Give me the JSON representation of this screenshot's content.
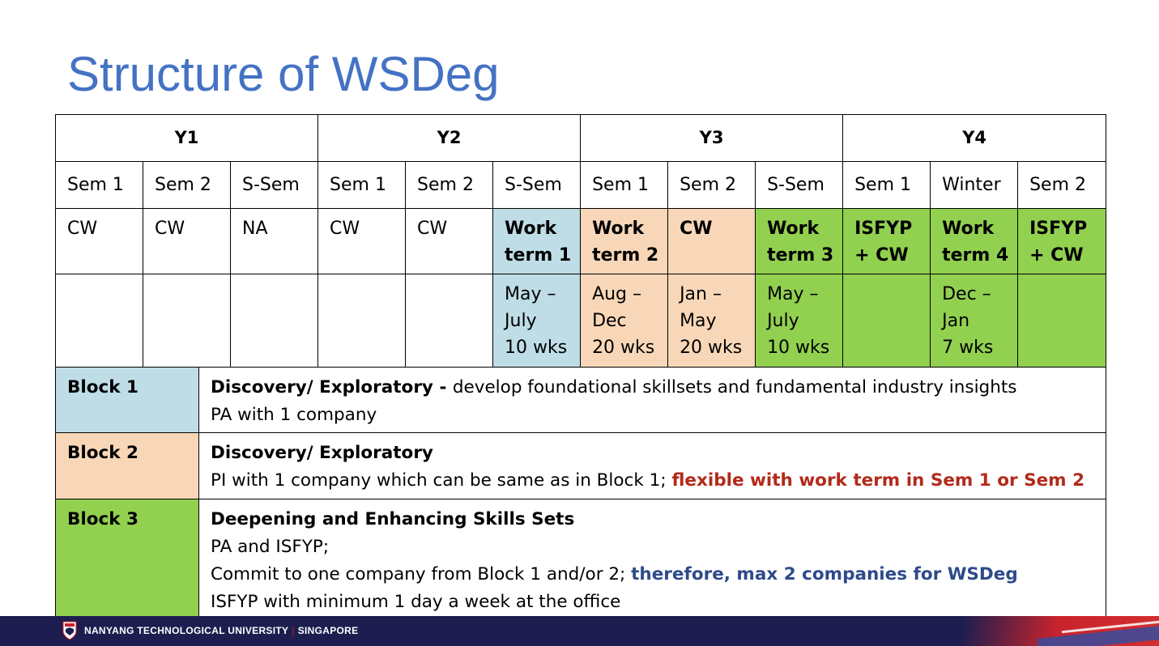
{
  "title": "Structure of WSDeg",
  "years": [
    "Y1",
    "Y2",
    "Y3",
    "Y4"
  ],
  "semesters": [
    "Sem 1",
    "Sem 2",
    "S-Sem",
    "Sem 1",
    "Sem 2",
    "S-Sem",
    "Sem 1",
    "Sem 2",
    "S-Sem",
    "Sem 1",
    "Winter",
    "Sem 2"
  ],
  "status": [
    {
      "lines": [
        "CW"
      ]
    },
    {
      "lines": [
        "CW"
      ]
    },
    {
      "lines": [
        "NA"
      ]
    },
    {
      "lines": [
        "CW"
      ]
    },
    {
      "lines": [
        "CW"
      ]
    },
    {
      "lines": [
        "Work",
        "term 1"
      ],
      "bold": true,
      "fill": "blue"
    },
    {
      "lines": [
        "Work",
        "term 2"
      ],
      "bold": true,
      "red": true,
      "fill": "peach"
    },
    {
      "lines": [
        "CW"
      ],
      "bold": true,
      "red": true,
      "fill": "peach"
    },
    {
      "lines": [
        "Work",
        "term 3"
      ],
      "bold": true,
      "fill": "green"
    },
    {
      "lines": [
        "ISFYP",
        "+ CW"
      ],
      "bold": true,
      "fill": "green"
    },
    {
      "lines": [
        "Work",
        "term 4"
      ],
      "bold": true,
      "fill": "green"
    },
    {
      "lines": [
        "ISFYP",
        "+ CW"
      ],
      "bold": true,
      "fill": "green"
    }
  ],
  "periods": [
    {
      "lines": []
    },
    {
      "lines": []
    },
    {
      "lines": []
    },
    {
      "lines": []
    },
    {
      "lines": []
    },
    {
      "lines": [
        "May –",
        "July",
        "10 wks"
      ],
      "fill": "blue"
    },
    {
      "lines": [
        "Aug –",
        "Dec",
        "20 wks"
      ],
      "red": true,
      "fill": "peach"
    },
    {
      "lines": [
        "Jan –",
        "May",
        "20 wks"
      ],
      "red": true,
      "fill": "peach"
    },
    {
      "lines": [
        "May –",
        "July",
        "10 wks"
      ],
      "fill": "green"
    },
    {
      "lines": [],
      "fill": "green"
    },
    {
      "lines": [
        "Dec –",
        "Jan",
        "7 wks"
      ],
      "fill": "green"
    },
    {
      "lines": [],
      "fill": "green"
    }
  ],
  "blocks": [
    {
      "label": "Block 1",
      "heading": "Discovery/ Exploratory",
      "heading_suffix": " - ",
      "heading_rest": "develop foundational skillsets and fundamental industry insights",
      "line2": "PA with 1 company"
    },
    {
      "label": "Block 2",
      "heading": "Discovery/ Exploratory",
      "line2_plain": "PI with 1 company which can be same as in Block 1; ",
      "line2_emph": "flexible with work term in Sem 1 or Sem 2"
    },
    {
      "label": "Block 3",
      "heading": "Deepening and Enhancing Skills Sets",
      "line2": "PA and ISFYP;",
      "line3_plain": "Commit to one company from Block 1 and/or 2; ",
      "line3_emph": "therefore, max 2 companies for WSDeg",
      "line4": "ISFYP with minimum 1 day a week at the office"
    }
  ],
  "footer": {
    "university": "NANYANG TECHNOLOGICAL UNIVERSITY",
    "separator": "|",
    "location": "SINGAPORE"
  },
  "colors": {
    "title": "#4472c4",
    "blue_fill": "#bfdde6",
    "peach_fill": "#f8d7b8",
    "green_fill": "#92d050",
    "red_text": "#b22a1a",
    "navy_text": "#2e4a8a",
    "footer_bg": "#1d1e4f"
  }
}
